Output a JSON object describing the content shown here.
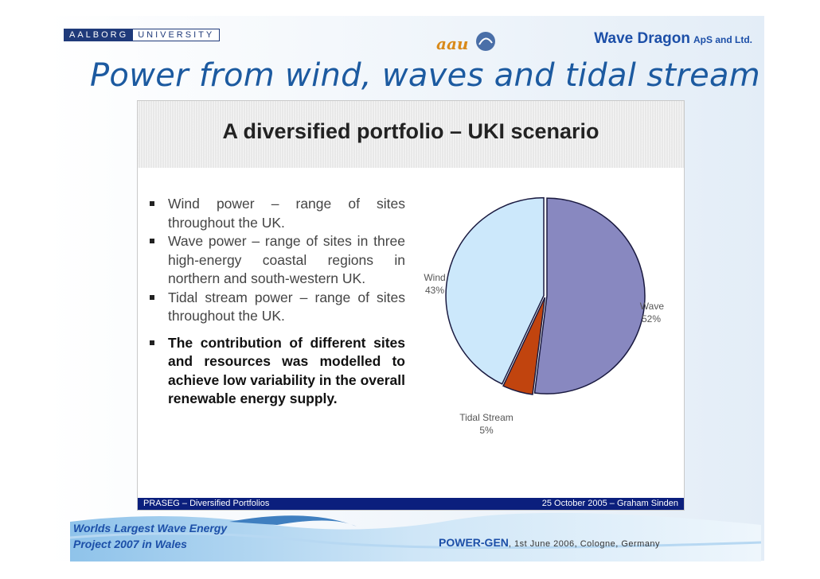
{
  "header": {
    "logo_left": "AALBORG",
    "logo_right": "UNIVERSITY",
    "company": "Wave Dragon",
    "company_suffix": "ApS and Ltd.",
    "title": "Power from wind, waves and tidal stream"
  },
  "slide": {
    "heading": "A diversified portfolio – UKI scenario",
    "bullets": [
      "Wind power – range of sites throughout the UK.",
      "Wave power – range of sites in three high-energy coastal regions in northern and south-western UK.",
      "Tidal stream power – range of sites throughout the UK.",
      "The contribution of different sites and resources was modelled to achieve low variability in the overall renewable energy supply."
    ],
    "footer_left": "PRASEG – Diversified Portfolios",
    "footer_right": "25 October 2005 – Graham Sinden"
  },
  "footer": {
    "line1": "Worlds Largest Wave Energy",
    "line2": "Project 2007 in Wales",
    "event": "POWER-GEN",
    "event_details": ", 1st June 2006, Cologne, Germany"
  },
  "colors": {
    "wave": "#8888c0",
    "tidal": "#c1440e",
    "wind": "#cce8fb",
    "title": "#1c5aa0",
    "footer_bar": "#0b1f7d"
  },
  "chart_data": {
    "type": "pie",
    "title": "",
    "series": [
      {
        "name": "Wave",
        "label": "52%",
        "value": 52
      },
      {
        "name": "Tidal Stream",
        "label": "5%",
        "value": 5
      },
      {
        "name": "Wind",
        "label": "43%",
        "value": 43
      }
    ]
  }
}
